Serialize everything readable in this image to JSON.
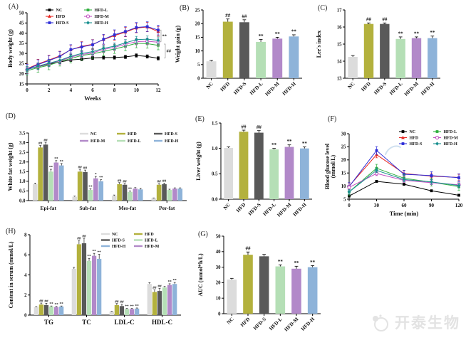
{
  "figure": {
    "watermark": {
      "text": "开泰生物",
      "color": "#e3e3e3"
    },
    "panels": {
      "A": {
        "label": "(A)"
      },
      "B": {
        "label": "(B)"
      },
      "C": {
        "label": "(C)"
      },
      "D": {
        "label": "(D)"
      },
      "E": {
        "label": "(E)"
      },
      "F": {
        "label": "(F)"
      },
      "G": {
        "label": "(G)"
      },
      "H": {
        "label": "(H)"
      }
    }
  },
  "groups": [
    "NC",
    "HFD",
    "HFD-S",
    "HFD-L",
    "HFD-M",
    "HFD-H"
  ],
  "palette": {
    "bar": {
      "NC": "#dcdcdc",
      "HFD": "#b3b13d",
      "HFD-S": "#595959",
      "HFD-L": "#b5dfb6",
      "HFD-M": "#b289c9",
      "HFD-H": "#8eb3d9"
    },
    "line": {
      "NC": "#000000",
      "HFD": "#e8251f",
      "HFD-S": "#2d2dd8",
      "HFD-L": "#2fae3e",
      "HFD-M": "#c24ec2",
      "HFD-H": "#188f8f"
    }
  },
  "chart_data": [
    {
      "id": "A",
      "type": "line",
      "xlabel": "Weeks",
      "ylabel": "Body weight (g)",
      "x": [
        0,
        1,
        2,
        3,
        4,
        5,
        6,
        7,
        8,
        9,
        10,
        11,
        12
      ],
      "xticks": [
        0,
        2,
        4,
        6,
        8,
        10,
        12
      ],
      "ylim": [
        15,
        50
      ],
      "yticks": [
        15,
        20,
        25,
        30,
        35,
        40,
        45,
        50
      ],
      "ydec": 0,
      "series": [
        {
          "name": "NC",
          "marker": "sq",
          "err": 0.8,
          "values": [
            22.2,
            23.5,
            24.8,
            25.8,
            26.8,
            27.2,
            27.8,
            28.0,
            28.0,
            28.3,
            29.0,
            28.5,
            27.6
          ]
        },
        {
          "name": "HFD",
          "marker": "tri",
          "err": 2.3,
          "values": [
            22.5,
            24.8,
            26.8,
            28.8,
            31.8,
            33.5,
            34.5,
            36.8,
            38.8,
            40.5,
            42.5,
            43.0,
            40.8
          ]
        },
        {
          "name": "HFD-S",
          "marker": "sq",
          "err": 2.4,
          "values": [
            22.3,
            24.5,
            26.5,
            28.5,
            31.9,
            33.2,
            34.3,
            37.0,
            39.2,
            40.8,
            42.8,
            43.2,
            41.5
          ]
        },
        {
          "name": "HFD-L",
          "marker": "sq",
          "err": 2.2,
          "values": [
            21.5,
            23.0,
            24.2,
            26.0,
            27.5,
            29.0,
            29.8,
            31.0,
            32.2,
            33.5,
            35.0,
            34.8,
            34.0
          ]
        },
        {
          "name": "HFD-M",
          "marker": "circ-open",
          "err": 1.6,
          "values": [
            22.0,
            23.6,
            25.0,
            26.3,
            28.2,
            29.5,
            30.3,
            32.0,
            33.0,
            34.5,
            35.8,
            36.0,
            35.5
          ]
        },
        {
          "name": "HFD-H",
          "marker": "diam",
          "err": 1.6,
          "values": [
            22.0,
            23.8,
            25.2,
            26.6,
            28.6,
            30.0,
            30.9,
            32.5,
            33.6,
            35.2,
            36.8,
            37.0,
            36.5
          ]
        }
      ],
      "legend_cols": [
        [
          "NC",
          "HFD",
          "HFD-S"
        ],
        [
          "HFD-L",
          "HFD-M",
          "HFD-H"
        ]
      ],
      "annotations": [
        {
          "text": "**",
          "dx": 4,
          "bracket": [
            41.5,
            35.8
          ]
        },
        {
          "text": "##",
          "dx": 10,
          "bracket": [
            34.6,
            27.8
          ]
        }
      ]
    },
    {
      "id": "B",
      "type": "bar",
      "ylabel": "Weight gain (g)",
      "categories": [
        "NC",
        "HFD",
        "HFD-S",
        "HFD-L",
        "HFD-M",
        "HFD-H"
      ],
      "values": [
        6.2,
        20.7,
        20.5,
        13.3,
        14.5,
        15.3
      ],
      "err": [
        0.3,
        1.0,
        0.9,
        0.9,
        0.5,
        0.6
      ],
      "sig": [
        "",
        "##",
        "##",
        "**",
        "**",
        "**"
      ],
      "ylim": [
        0,
        25
      ],
      "yticks": [
        0,
        5,
        10,
        15,
        20,
        25
      ],
      "ydec": 0
    },
    {
      "id": "C",
      "type": "bar",
      "ylabel": "Lee's index",
      "categories": [
        "NC",
        "HFD",
        "HFD-S",
        "HFD-L",
        "HFD-M",
        "HFD-H"
      ],
      "values": [
        14.25,
        16.18,
        16.18,
        15.3,
        15.35,
        15.35
      ],
      "err": [
        0.08,
        0.06,
        0.06,
        0.12,
        0.07,
        0.12
      ],
      "sig": [
        "",
        "##",
        "##",
        "**",
        "**",
        "**"
      ],
      "ylim": [
        13,
        17
      ],
      "yticks": [
        13,
        14,
        15,
        16,
        17
      ],
      "ydec": 0
    },
    {
      "id": "D",
      "type": "grouped-bar",
      "ylabel": "White fat weight (g)",
      "categories": [
        "Epi-fat",
        "Sub-fat",
        "Mes-fat",
        "Per-fat"
      ],
      "ylim": [
        0,
        3.5
      ],
      "yticks": [
        0,
        0.5,
        1,
        1.5,
        2,
        2.5,
        3,
        3.5
      ],
      "ydec": 1,
      "series": [
        {
          "name": "NC",
          "values": [
            0.85,
            0.2,
            0.25,
            0.12
          ],
          "err": [
            0.06,
            0.03,
            0.04,
            0.02
          ],
          "sig": [
            "",
            "",
            "",
            ""
          ]
        },
        {
          "name": "HFD",
          "values": [
            2.75,
            1.5,
            0.85,
            0.82
          ],
          "err": [
            0.1,
            0.12,
            0.08,
            0.06
          ],
          "sig": [
            "##",
            "##",
            "##",
            "##"
          ]
        },
        {
          "name": "HFD-S",
          "values": [
            2.9,
            1.48,
            0.82,
            0.85
          ],
          "err": [
            0.12,
            0.1,
            0.07,
            0.05
          ],
          "sig": [
            "##",
            "##",
            "##",
            "##"
          ]
        },
        {
          "name": "HFD-L",
          "values": [
            1.5,
            0.55,
            0.45,
            0.55
          ],
          "err": [
            0.12,
            0.06,
            0.05,
            0.04
          ],
          "sig": [
            "**",
            "**",
            "**",
            ""
          ]
        },
        {
          "name": "HFD-M",
          "values": [
            1.97,
            1.15,
            0.62,
            0.62
          ],
          "err": [
            0.1,
            0.1,
            0.05,
            0.04
          ],
          "sig": [
            "**",
            "*",
            "",
            ""
          ]
        },
        {
          "name": "HFD-H",
          "values": [
            1.82,
            1.0,
            0.58,
            0.62
          ],
          "err": [
            0.1,
            0.08,
            0.05,
            0.04
          ],
          "sig": [
            "**",
            "**",
            "",
            ""
          ]
        }
      ],
      "legend_rows": [
        [
          "NC",
          "HFD",
          "HFD-S"
        ],
        [
          "HFD-M",
          "HFD-L",
          "HFD-H"
        ]
      ]
    },
    {
      "id": "E",
      "type": "bar",
      "ylabel": "Liver weight (g)",
      "categories": [
        "NC",
        "HFD",
        "HFD-S",
        "HFD-L",
        "HFD-M",
        "HFD-H"
      ],
      "values": [
        1.01,
        1.33,
        1.31,
        0.98,
        1.03,
        1.0
      ],
      "err": [
        0.02,
        0.03,
        0.04,
        0.02,
        0.04,
        0.03
      ],
      "sig": [
        "",
        "##",
        "##",
        "**",
        "**",
        "**"
      ],
      "ylim": [
        0,
        1.5
      ],
      "yticks": [
        0,
        0.5,
        1,
        1.5
      ],
      "ydec": 1
    },
    {
      "id": "F",
      "type": "line",
      "xlabel": "Time (min)",
      "ylabel": [
        "Blood glucose level",
        "(mmol/L)"
      ],
      "x": [
        0,
        30,
        60,
        90,
        120
      ],
      "xticks": [
        0,
        30,
        60,
        90,
        120
      ],
      "ylim": [
        5,
        30
      ],
      "yticks": [
        5,
        10,
        15,
        20,
        25,
        30
      ],
      "ydec": 0,
      "series": [
        {
          "name": "NC",
          "marker": "sq",
          "err": 0.4,
          "values": [
            6.2,
            11.8,
            10.7,
            8.2,
            6.5
          ]
        },
        {
          "name": "HFD",
          "marker": "tri",
          "err": 1.2,
          "values": [
            10.0,
            22.0,
            14.8,
            13.8,
            13.3
          ]
        },
        {
          "name": "HFD-S",
          "marker": "sq",
          "err": 1.5,
          "values": [
            9.8,
            23.6,
            14.5,
            14.0,
            13.2
          ]
        },
        {
          "name": "HFD-L",
          "marker": "sq",
          "err": 1.5,
          "values": [
            7.8,
            16.8,
            13.0,
            11.5,
            9.8
          ]
        },
        {
          "name": "HFD-M",
          "marker": "circ-open",
          "err": 0.8,
          "values": [
            9.5,
            14.8,
            12.2,
            11.3,
            10.5
          ]
        },
        {
          "name": "HFD-H",
          "marker": "diam",
          "err": 0.9,
          "values": [
            7.8,
            16.0,
            12.5,
            11.6,
            10.2
          ]
        }
      ],
      "legend_cols": [
        [
          "NC",
          "HFD",
          "HFD-S"
        ],
        [
          "HFD-L",
          "HFD-M",
          "HFD-H"
        ]
      ],
      "annotations": []
    },
    {
      "id": "G",
      "type": "bar",
      "ylabel": "AUC (mmol*h/L)",
      "categories": [
        "NC",
        "HFD",
        "HFD-S",
        "HFD-L",
        "HFD-M",
        "HFD-H"
      ],
      "values": [
        22,
        38,
        37,
        30.5,
        29,
        30
      ],
      "err": [
        0.8,
        1.8,
        1.2,
        1.0,
        1.6,
        1.0
      ],
      "sig": [
        "",
        "##",
        "",
        "**",
        "**",
        "**"
      ],
      "ylim": [
        0,
        50
      ],
      "yticks": [
        0,
        10,
        20,
        30,
        40,
        50
      ],
      "ydec": 0
    },
    {
      "id": "H",
      "type": "grouped-bar",
      "ylabel": "Content in serum (mmol/L)",
      "categories": [
        "TG",
        "TC",
        "LDL-C",
        "HDL-C"
      ],
      "ylim": [
        0,
        8
      ],
      "yticks": [
        0,
        2,
        4,
        6,
        8
      ],
      "ydec": 0,
      "series": [
        {
          "name": "NC",
          "values": [
            0.8,
            4.6,
            0.35,
            3.1
          ],
          "err": [
            0.05,
            0.15,
            0.04,
            0.12
          ],
          "sig": [
            "",
            "",
            "",
            ""
          ]
        },
        {
          "name": "HFD",
          "values": [
            1.05,
            7.05,
            1.0,
            2.3
          ],
          "err": [
            0.15,
            0.4,
            0.15,
            0.2
          ],
          "sig": [
            "##",
            "##",
            "##",
            "##"
          ]
        },
        {
          "name": "HFD-S",
          "values": [
            1.0,
            7.15,
            0.9,
            2.4
          ],
          "err": [
            0.18,
            0.5,
            0.18,
            0.25
          ],
          "sig": [
            "##",
            "##",
            "##",
            "##"
          ]
        },
        {
          "name": "HFD-L",
          "values": [
            0.85,
            5.4,
            0.6,
            2.75
          ],
          "err": [
            0.06,
            0.25,
            0.06,
            0.1
          ],
          "sig": [
            "**",
            "**",
            "**",
            ""
          ]
        },
        {
          "name": "HFD-M",
          "values": [
            0.8,
            5.9,
            0.6,
            3.0
          ],
          "err": [
            0.06,
            0.25,
            0.06,
            0.12
          ],
          "sig": [
            "**",
            "**",
            "**",
            "**"
          ]
        },
        {
          "name": "HFD-H",
          "values": [
            0.85,
            5.6,
            0.65,
            3.1
          ],
          "err": [
            0.06,
            0.45,
            0.06,
            0.15
          ],
          "sig": [
            "**",
            "**",
            "**",
            "**"
          ]
        }
      ],
      "legend_rows": [
        [
          "NC",
          "HFD"
        ],
        [
          "HFD-S",
          "HFD-L"
        ],
        [
          "HFD-H",
          "HFD-M"
        ]
      ]
    }
  ]
}
